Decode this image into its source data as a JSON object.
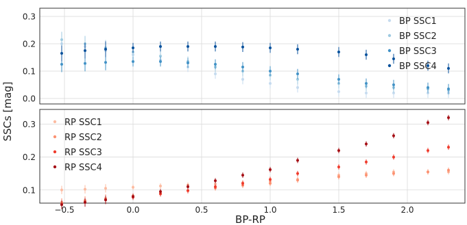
{
  "chart_data": [
    {
      "type": "scatter",
      "panel": "top",
      "xlabel": "BP-RP",
      "ylabel": "SSCs [mag]",
      "xlim": [
        -0.68,
        2.42
      ],
      "ylim": [
        -0.02,
        0.33
      ],
      "x_ticks": [
        -0.5,
        0.0,
        0.5,
        1.0,
        1.5,
        2.0
      ],
      "x_tick_labels": [
        "−0.5",
        "0.0",
        "0.5",
        "1.0",
        "1.5",
        "2.0"
      ],
      "y_ticks": [
        0.0,
        0.1,
        0.2,
        0.3
      ],
      "y_tick_labels": [
        "0.0",
        "0.1",
        "0.2",
        "0.3"
      ],
      "grid": true,
      "legend_position": "top-right",
      "series": [
        {
          "name": "BP SSC1",
          "color": "#c6dbef",
          "x": [
            -0.52,
            -0.35,
            -0.2,
            0.0,
            0.2,
            0.4,
            0.6,
            0.8,
            1.0,
            1.2,
            1.5,
            1.7,
            1.9,
            2.15,
            2.3
          ],
          "y": [
            0.2,
            0.19,
            0.175,
            0.16,
            0.14,
            0.115,
            0.09,
            0.07,
            0.055,
            0.04,
            0.025,
            0.02,
            0.02,
            0.02,
            0.02
          ]
        },
        {
          "name": "BP SSC2",
          "color": "#9ecae1",
          "x": [
            -0.52,
            -0.35,
            -0.2,
            0.0,
            0.2,
            0.4,
            0.6,
            0.8,
            1.0,
            1.2,
            1.5,
            1.7,
            1.9,
            2.15,
            2.3
          ],
          "y": [
            0.215,
            0.2,
            0.185,
            0.17,
            0.155,
            0.135,
            0.115,
            0.1,
            0.085,
            0.07,
            0.055,
            0.045,
            0.04,
            0.035,
            0.03
          ]
        },
        {
          "name": "BP SSC3",
          "color": "#4292c6",
          "x": [
            -0.52,
            -0.35,
            -0.2,
            0.0,
            0.2,
            0.4,
            0.6,
            0.8,
            1.0,
            1.2,
            1.5,
            1.7,
            1.9,
            2.15,
            2.3
          ],
          "y": [
            0.125,
            0.128,
            0.132,
            0.135,
            0.135,
            0.13,
            0.125,
            0.115,
            0.1,
            0.09,
            0.07,
            0.055,
            0.05,
            0.04,
            0.035
          ]
        },
        {
          "name": "BP SSC4",
          "color": "#08519c",
          "x": [
            -0.52,
            -0.35,
            -0.2,
            0.0,
            0.2,
            0.4,
            0.6,
            0.8,
            1.0,
            1.2,
            1.5,
            1.7,
            1.9,
            2.15,
            2.3
          ],
          "y": [
            0.165,
            0.175,
            0.18,
            0.185,
            0.19,
            0.19,
            0.19,
            0.188,
            0.185,
            0.18,
            0.17,
            0.16,
            0.145,
            0.12,
            0.11
          ]
        }
      ]
    },
    {
      "type": "scatter",
      "panel": "bottom",
      "xlabel": "BP-RP",
      "ylabel": "SSCs [mag]",
      "xlim": [
        -0.68,
        2.42
      ],
      "ylim": [
        0.06,
        0.345
      ],
      "x_ticks": [
        -0.5,
        0.0,
        0.5,
        1.0,
        1.5,
        2.0
      ],
      "x_tick_labels": [
        "−0.5",
        "0.0",
        "0.5",
        "1.0",
        "1.5",
        "2.0"
      ],
      "y_ticks": [
        0.1,
        0.2,
        0.3
      ],
      "y_tick_labels": [
        "0.1",
        "0.2",
        "0.3"
      ],
      "grid": true,
      "legend_position": "top-left",
      "series": [
        {
          "name": "RP SSC1",
          "color": "#fcbba1",
          "x": [
            -0.52,
            -0.35,
            -0.2,
            0.0,
            0.2,
            0.4,
            0.6,
            0.8,
            1.0,
            1.2,
            1.5,
            1.7,
            1.9,
            2.15,
            2.3
          ],
          "y": [
            0.1,
            0.102,
            0.105,
            0.108,
            0.112,
            0.115,
            0.118,
            0.122,
            0.126,
            0.132,
            0.145,
            0.15,
            0.155,
            0.155,
            0.155
          ]
        },
        {
          "name": "RP SSC2",
          "color": "#fc9272",
          "x": [
            -0.52,
            -0.35,
            -0.2,
            0.0,
            0.2,
            0.4,
            0.6,
            0.8,
            1.0,
            1.2,
            1.5,
            1.7,
            1.9,
            2.15,
            2.3
          ],
          "y": [
            0.062,
            0.068,
            0.074,
            0.082,
            0.09,
            0.098,
            0.106,
            0.114,
            0.12,
            0.13,
            0.14,
            0.145,
            0.15,
            0.155,
            0.16
          ]
        },
        {
          "name": "RP SSC3",
          "color": "#ef3b2c",
          "x": [
            -0.52,
            -0.35,
            -0.2,
            0.0,
            0.2,
            0.4,
            0.6,
            0.8,
            1.0,
            1.2,
            1.5,
            1.7,
            1.9,
            2.15,
            2.3
          ],
          "y": [
            0.057,
            0.063,
            0.07,
            0.078,
            0.088,
            0.098,
            0.11,
            0.12,
            0.132,
            0.15,
            0.17,
            0.185,
            0.2,
            0.22,
            0.23
          ]
        },
        {
          "name": "RP SSC4",
          "color": "#a50f15",
          "x": [
            -0.52,
            -0.35,
            -0.2,
            0.0,
            0.2,
            0.4,
            0.6,
            0.8,
            1.0,
            1.2,
            1.5,
            1.7,
            1.9,
            2.15,
            2.3
          ],
          "y": [
            0.055,
            0.062,
            0.07,
            0.08,
            0.095,
            0.11,
            0.128,
            0.145,
            0.162,
            0.19,
            0.22,
            0.24,
            0.265,
            0.305,
            0.32
          ]
        }
      ]
    }
  ]
}
